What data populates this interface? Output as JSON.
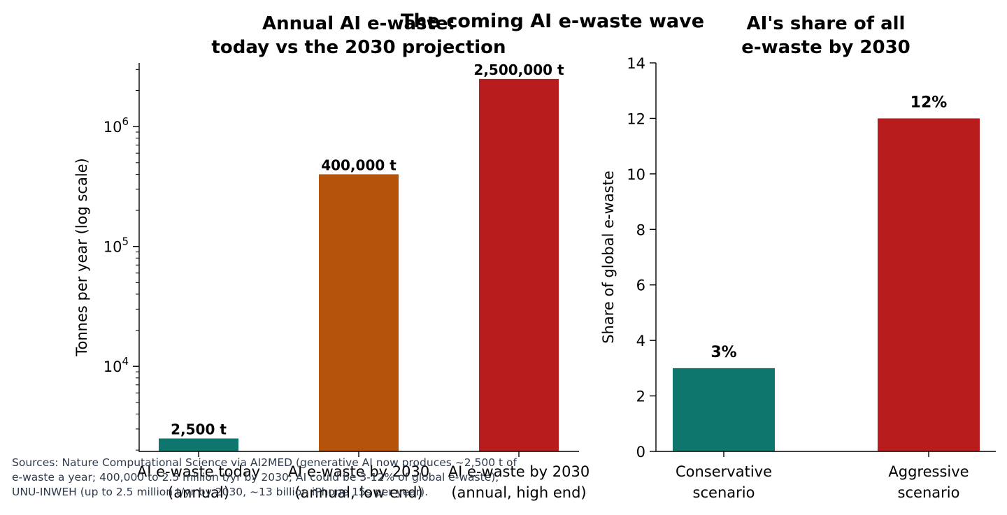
{
  "suptitle": "The coming AI e-waste wave",
  "source_lines": [
    "Sources: Nature Computational Science via AI2MED (generative AI now produces ~2,500 t of",
    "e-waste a year; 400,000 to 2.5 million t/yr by 2030; AI could be 3-12% of global e-waste),",
    "UNU-INWEH (up to 2.5 million t/yr by 2030, ~13 billion iPhone 15s per year)."
  ],
  "chart_data": [
    {
      "type": "bar",
      "title_lines": [
        "Annual AI e-waste:",
        "today vs the 2030 projection"
      ],
      "ylabel": "Tonnes per year (log scale)",
      "yscale": "log",
      "ylim": [
        1950,
        3400000
      ],
      "yticks": [
        {
          "value": 10000,
          "base": "10",
          "exp": "4"
        },
        {
          "value": 100000,
          "base": "10",
          "exp": "5"
        },
        {
          "value": 1000000,
          "base": "10",
          "exp": "6"
        }
      ],
      "categories": [
        {
          "lines": [
            "AI e-waste today",
            "(annual)"
          ]
        },
        {
          "lines": [
            "AI e-waste by 2030",
            "(annual, low end)"
          ]
        },
        {
          "lines": [
            "AI e-waste by 2030",
            "(annual, high end)"
          ]
        }
      ],
      "values": [
        2500,
        400000,
        2500000
      ],
      "labels": [
        "2,500 t",
        "400,000 t",
        "2,500,000 t"
      ],
      "colors": [
        "#0f766e",
        "#b45309",
        "#b91c1c"
      ]
    },
    {
      "type": "bar",
      "title_lines": [
        "AI's share of all",
        "e-waste by 2030"
      ],
      "ylabel": "Share of global e-waste",
      "yscale": "linear",
      "ylim": [
        0,
        14
      ],
      "yticks": [
        0,
        2,
        4,
        6,
        8,
        10,
        12,
        14
      ],
      "categories": [
        {
          "lines": [
            "Conservative",
            "scenario"
          ]
        },
        {
          "lines": [
            "Aggressive",
            "scenario"
          ]
        }
      ],
      "values": [
        3,
        12
      ],
      "labels": [
        "3%",
        "12%"
      ],
      "colors": [
        "#0f766e",
        "#b91c1c"
      ]
    }
  ]
}
